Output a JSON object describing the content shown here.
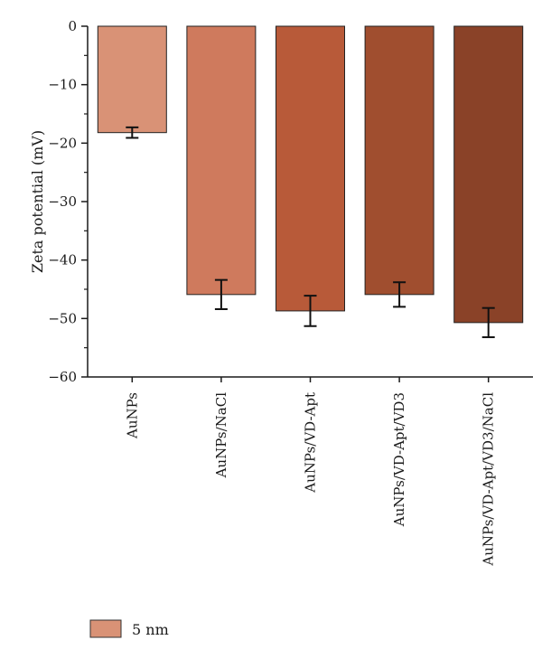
{
  "chart_data": {
    "type": "bar",
    "categories": [
      "AuNPs",
      "AuNPs/NaCl",
      "AuNPs/VD-Apt",
      "AuNPs/VD-Apt/VD3",
      "AuNPs/VD-Apt/VD3/NaCl"
    ],
    "series": [
      {
        "name": "5 nm",
        "values": [
          -18.2,
          -45.9,
          -48.7,
          -45.9,
          -50.7
        ],
        "errors": [
          0.9,
          2.5,
          2.6,
          2.1,
          2.5
        ],
        "colors": [
          "#d99276",
          "#cf7a5d",
          "#b85a39",
          "#a04e2f",
          "#8a4228"
        ]
      }
    ],
    "xlabel": "",
    "ylabel": "Zeta potential (mV)",
    "ylim": [
      -60,
      0
    ],
    "yticks": [
      0,
      -10,
      -20,
      -30,
      -40,
      -50,
      -60
    ],
    "ytick_labels": [
      "0",
      "−10",
      "−20",
      "−30",
      "−40",
      "−50",
      "−60"
    ],
    "grid": false,
    "legend": {
      "position": "bottom-left",
      "entries": [
        "5 nm"
      ],
      "swatch_color": "#d99276"
    }
  }
}
